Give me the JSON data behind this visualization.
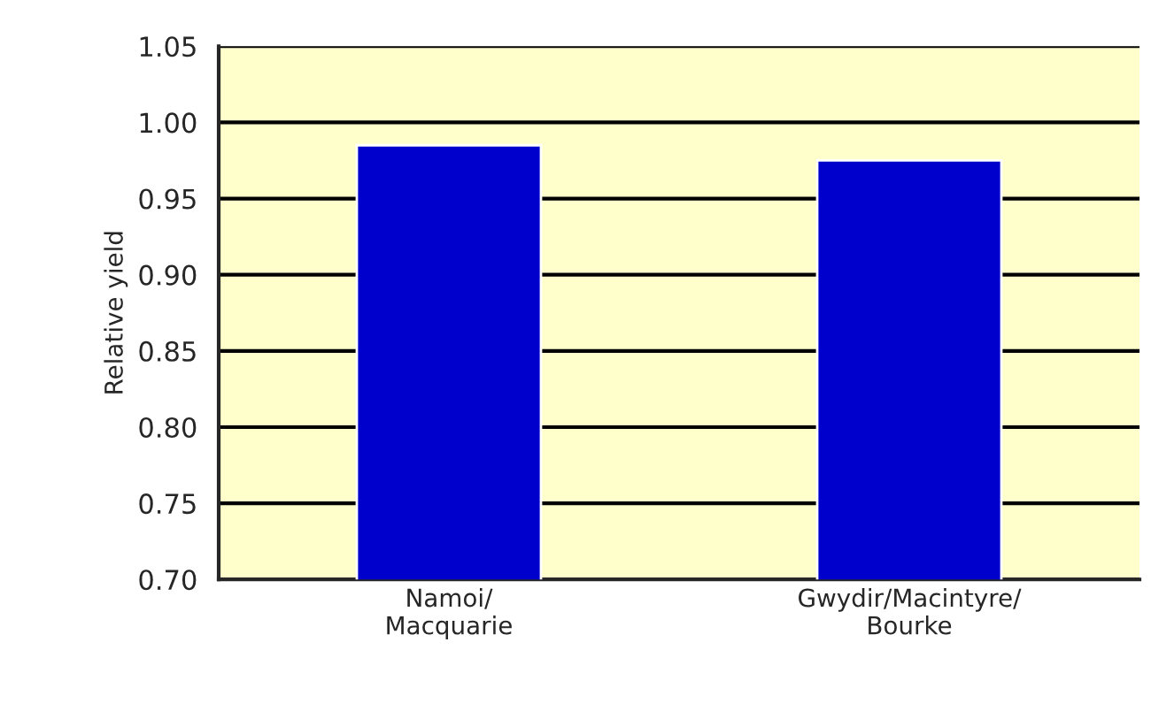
{
  "chart_data": {
    "type": "bar",
    "ylabel": "Relative yield",
    "categories": [
      "Namoi/\nMacquarie",
      "Gwydir/Macintyre/\nBourke"
    ],
    "values": [
      0.985,
      0.975
    ],
    "color": "#0000cc",
    "ylim": [
      0.7,
      1.05
    ],
    "yticks": [
      {
        "value": 0.7,
        "label": "0.70"
      },
      {
        "value": 0.75,
        "label": "0.75"
      },
      {
        "value": 0.8,
        "label": "0.80"
      },
      {
        "value": 0.85,
        "label": "0.85"
      },
      {
        "value": 0.9,
        "label": "0.90"
      },
      {
        "value": 0.95,
        "label": "0.95"
      },
      {
        "value": 1.0,
        "label": "1.00"
      },
      {
        "value": 1.05,
        "label": "1.05"
      }
    ],
    "grid": "y"
  }
}
